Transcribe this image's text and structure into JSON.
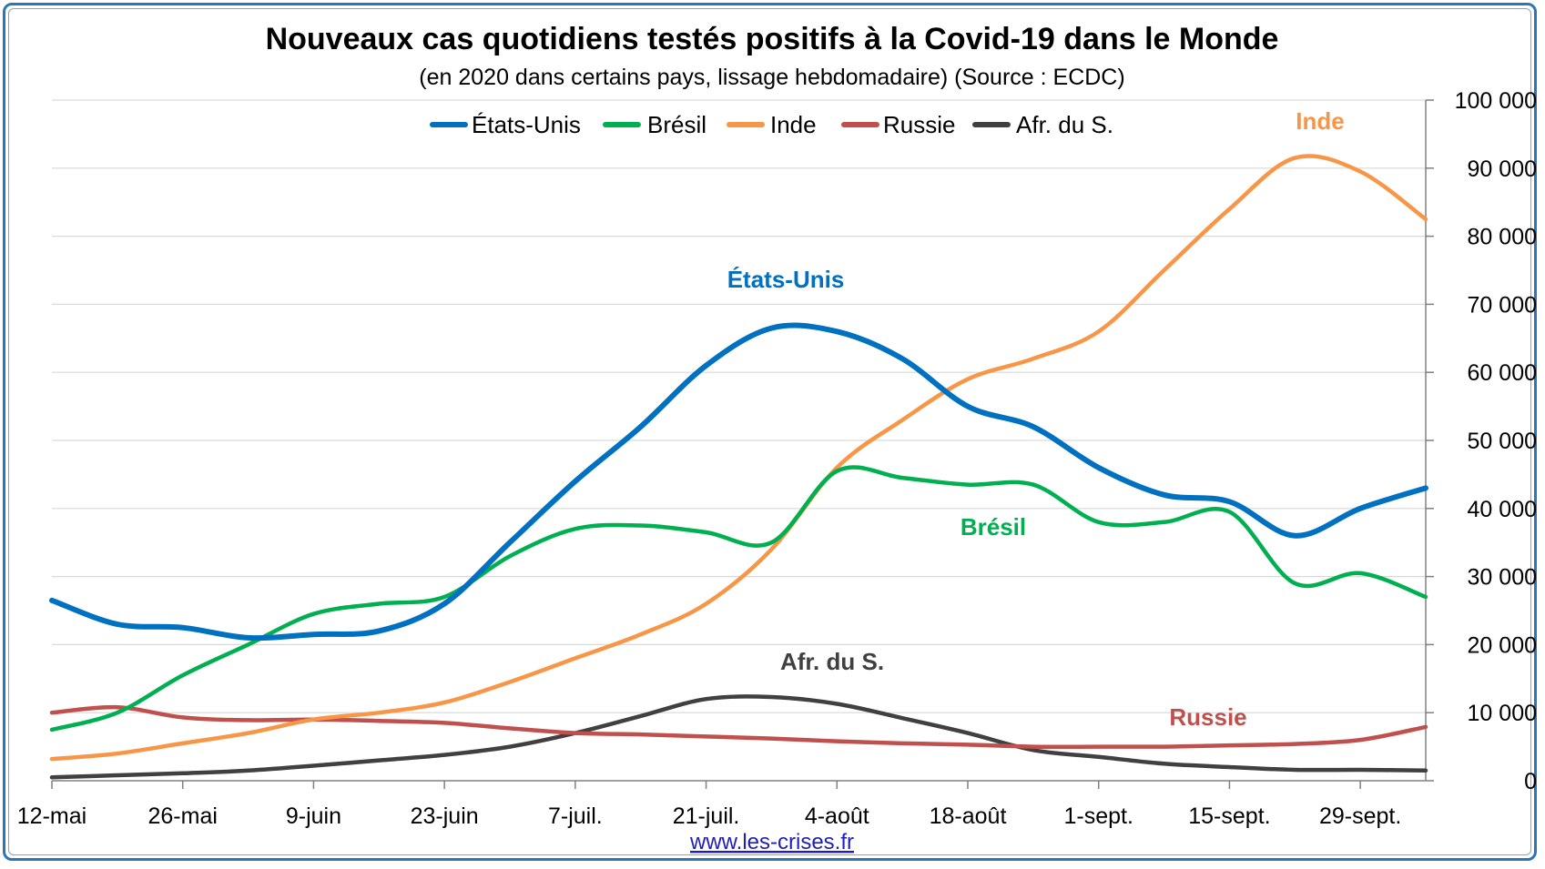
{
  "chart_data": {
    "type": "line",
    "title": "Nouveaux cas quotidiens testés positifs à la Covid-19 dans le Monde",
    "subtitle": "(en 2020 dans certains pays, lissage hebdomadaire) (Source : ECDC)",
    "x_tick_labels": [
      "12-mai",
      "26-mai",
      "9-juin",
      "23-juin",
      "7-juil.",
      "21-juil.",
      "4-août",
      "18-août",
      "1-sept.",
      "15-sept.",
      "29-sept."
    ],
    "x_range_days": [
      0,
      147
    ],
    "ylim": [
      0,
      100000
    ],
    "y_ticks": [
      0,
      10000,
      20000,
      30000,
      40000,
      50000,
      60000,
      70000,
      80000,
      90000,
      100000
    ],
    "y_tick_labels": [
      "0",
      "10 000",
      "20 000",
      "30 000",
      "40 000",
      "50 000",
      "60 000",
      "70 000",
      "80 000",
      "90 000",
      "100 000"
    ],
    "y_axis_side": "right",
    "grid": true,
    "legend_position": "top",
    "series": [
      {
        "name": "États-Unis",
        "color": "#0070c0",
        "label": "États-Unis",
        "points": [
          [
            0,
            26500
          ],
          [
            7,
            23000
          ],
          [
            14,
            22500
          ],
          [
            21,
            21000
          ],
          [
            28,
            21500
          ],
          [
            35,
            22000
          ],
          [
            42,
            26000
          ],
          [
            49,
            35000
          ],
          [
            56,
            44000
          ],
          [
            63,
            52000
          ],
          [
            70,
            61000
          ],
          [
            77,
            66500
          ],
          [
            84,
            66000
          ],
          [
            91,
            62000
          ],
          [
            98,
            55000
          ],
          [
            105,
            52000
          ],
          [
            112,
            46000
          ],
          [
            119,
            42000
          ],
          [
            126,
            41000
          ],
          [
            133,
            36000
          ],
          [
            140,
            40000
          ],
          [
            147,
            43000
          ]
        ]
      },
      {
        "name": "Brésil",
        "color": "#00b050",
        "label": "Brésil",
        "points": [
          [
            0,
            7500
          ],
          [
            7,
            10000
          ],
          [
            14,
            15500
          ],
          [
            21,
            20000
          ],
          [
            28,
            24500
          ],
          [
            35,
            26000
          ],
          [
            42,
            27000
          ],
          [
            49,
            33000
          ],
          [
            56,
            37000
          ],
          [
            63,
            37500
          ],
          [
            70,
            36500
          ],
          [
            77,
            35000
          ],
          [
            84,
            45500
          ],
          [
            91,
            44500
          ],
          [
            98,
            43500
          ],
          [
            105,
            43500
          ],
          [
            112,
            38000
          ],
          [
            119,
            38000
          ],
          [
            126,
            39500
          ],
          [
            133,
            29000
          ],
          [
            140,
            30500
          ],
          [
            147,
            27000
          ]
        ]
      },
      {
        "name": "Inde",
        "color": "#f79646",
        "label": "Inde",
        "points": [
          [
            0,
            3200
          ],
          [
            7,
            4000
          ],
          [
            14,
            5500
          ],
          [
            21,
            7000
          ],
          [
            28,
            9000
          ],
          [
            35,
            10000
          ],
          [
            42,
            11500
          ],
          [
            49,
            14500
          ],
          [
            56,
            18000
          ],
          [
            63,
            21500
          ],
          [
            70,
            26000
          ],
          [
            77,
            34000
          ],
          [
            84,
            46000
          ],
          [
            91,
            53000
          ],
          [
            98,
            59000
          ],
          [
            105,
            62000
          ],
          [
            112,
            66000
          ],
          [
            119,
            75000
          ],
          [
            126,
            84000
          ],
          [
            133,
            91500
          ],
          [
            140,
            89500
          ],
          [
            147,
            82500
          ]
        ]
      },
      {
        "name": "Russie",
        "color": "#c0504d",
        "label": "Russie",
        "points": [
          [
            0,
            10000
          ],
          [
            7,
            10800
          ],
          [
            14,
            9300
          ],
          [
            21,
            8900
          ],
          [
            28,
            9000
          ],
          [
            35,
            8800
          ],
          [
            42,
            8500
          ],
          [
            49,
            7700
          ],
          [
            56,
            7000
          ],
          [
            63,
            6800
          ],
          [
            70,
            6500
          ],
          [
            77,
            6200
          ],
          [
            84,
            5800
          ],
          [
            91,
            5500
          ],
          [
            98,
            5300
          ],
          [
            105,
            5000
          ],
          [
            112,
            5000
          ],
          [
            119,
            5000
          ],
          [
            126,
            5200
          ],
          [
            133,
            5400
          ],
          [
            140,
            6000
          ],
          [
            147,
            7900
          ]
        ]
      },
      {
        "name": "Afr. du S.",
        "color": "#404040",
        "label": "Afr. du S.",
        "points": [
          [
            0,
            500
          ],
          [
            7,
            800
          ],
          [
            14,
            1100
          ],
          [
            21,
            1500
          ],
          [
            28,
            2200
          ],
          [
            35,
            3000
          ],
          [
            42,
            3800
          ],
          [
            49,
            5000
          ],
          [
            56,
            7000
          ],
          [
            63,
            9500
          ],
          [
            70,
            12000
          ],
          [
            77,
            12300
          ],
          [
            84,
            11300
          ],
          [
            91,
            9200
          ],
          [
            98,
            7000
          ],
          [
            105,
            4500
          ],
          [
            112,
            3500
          ],
          [
            119,
            2500
          ],
          [
            126,
            2000
          ],
          [
            133,
            1600
          ],
          [
            140,
            1600
          ],
          [
            147,
            1500
          ]
        ]
      }
    ]
  },
  "footer": {
    "source_link": "www.les-crises.fr"
  }
}
